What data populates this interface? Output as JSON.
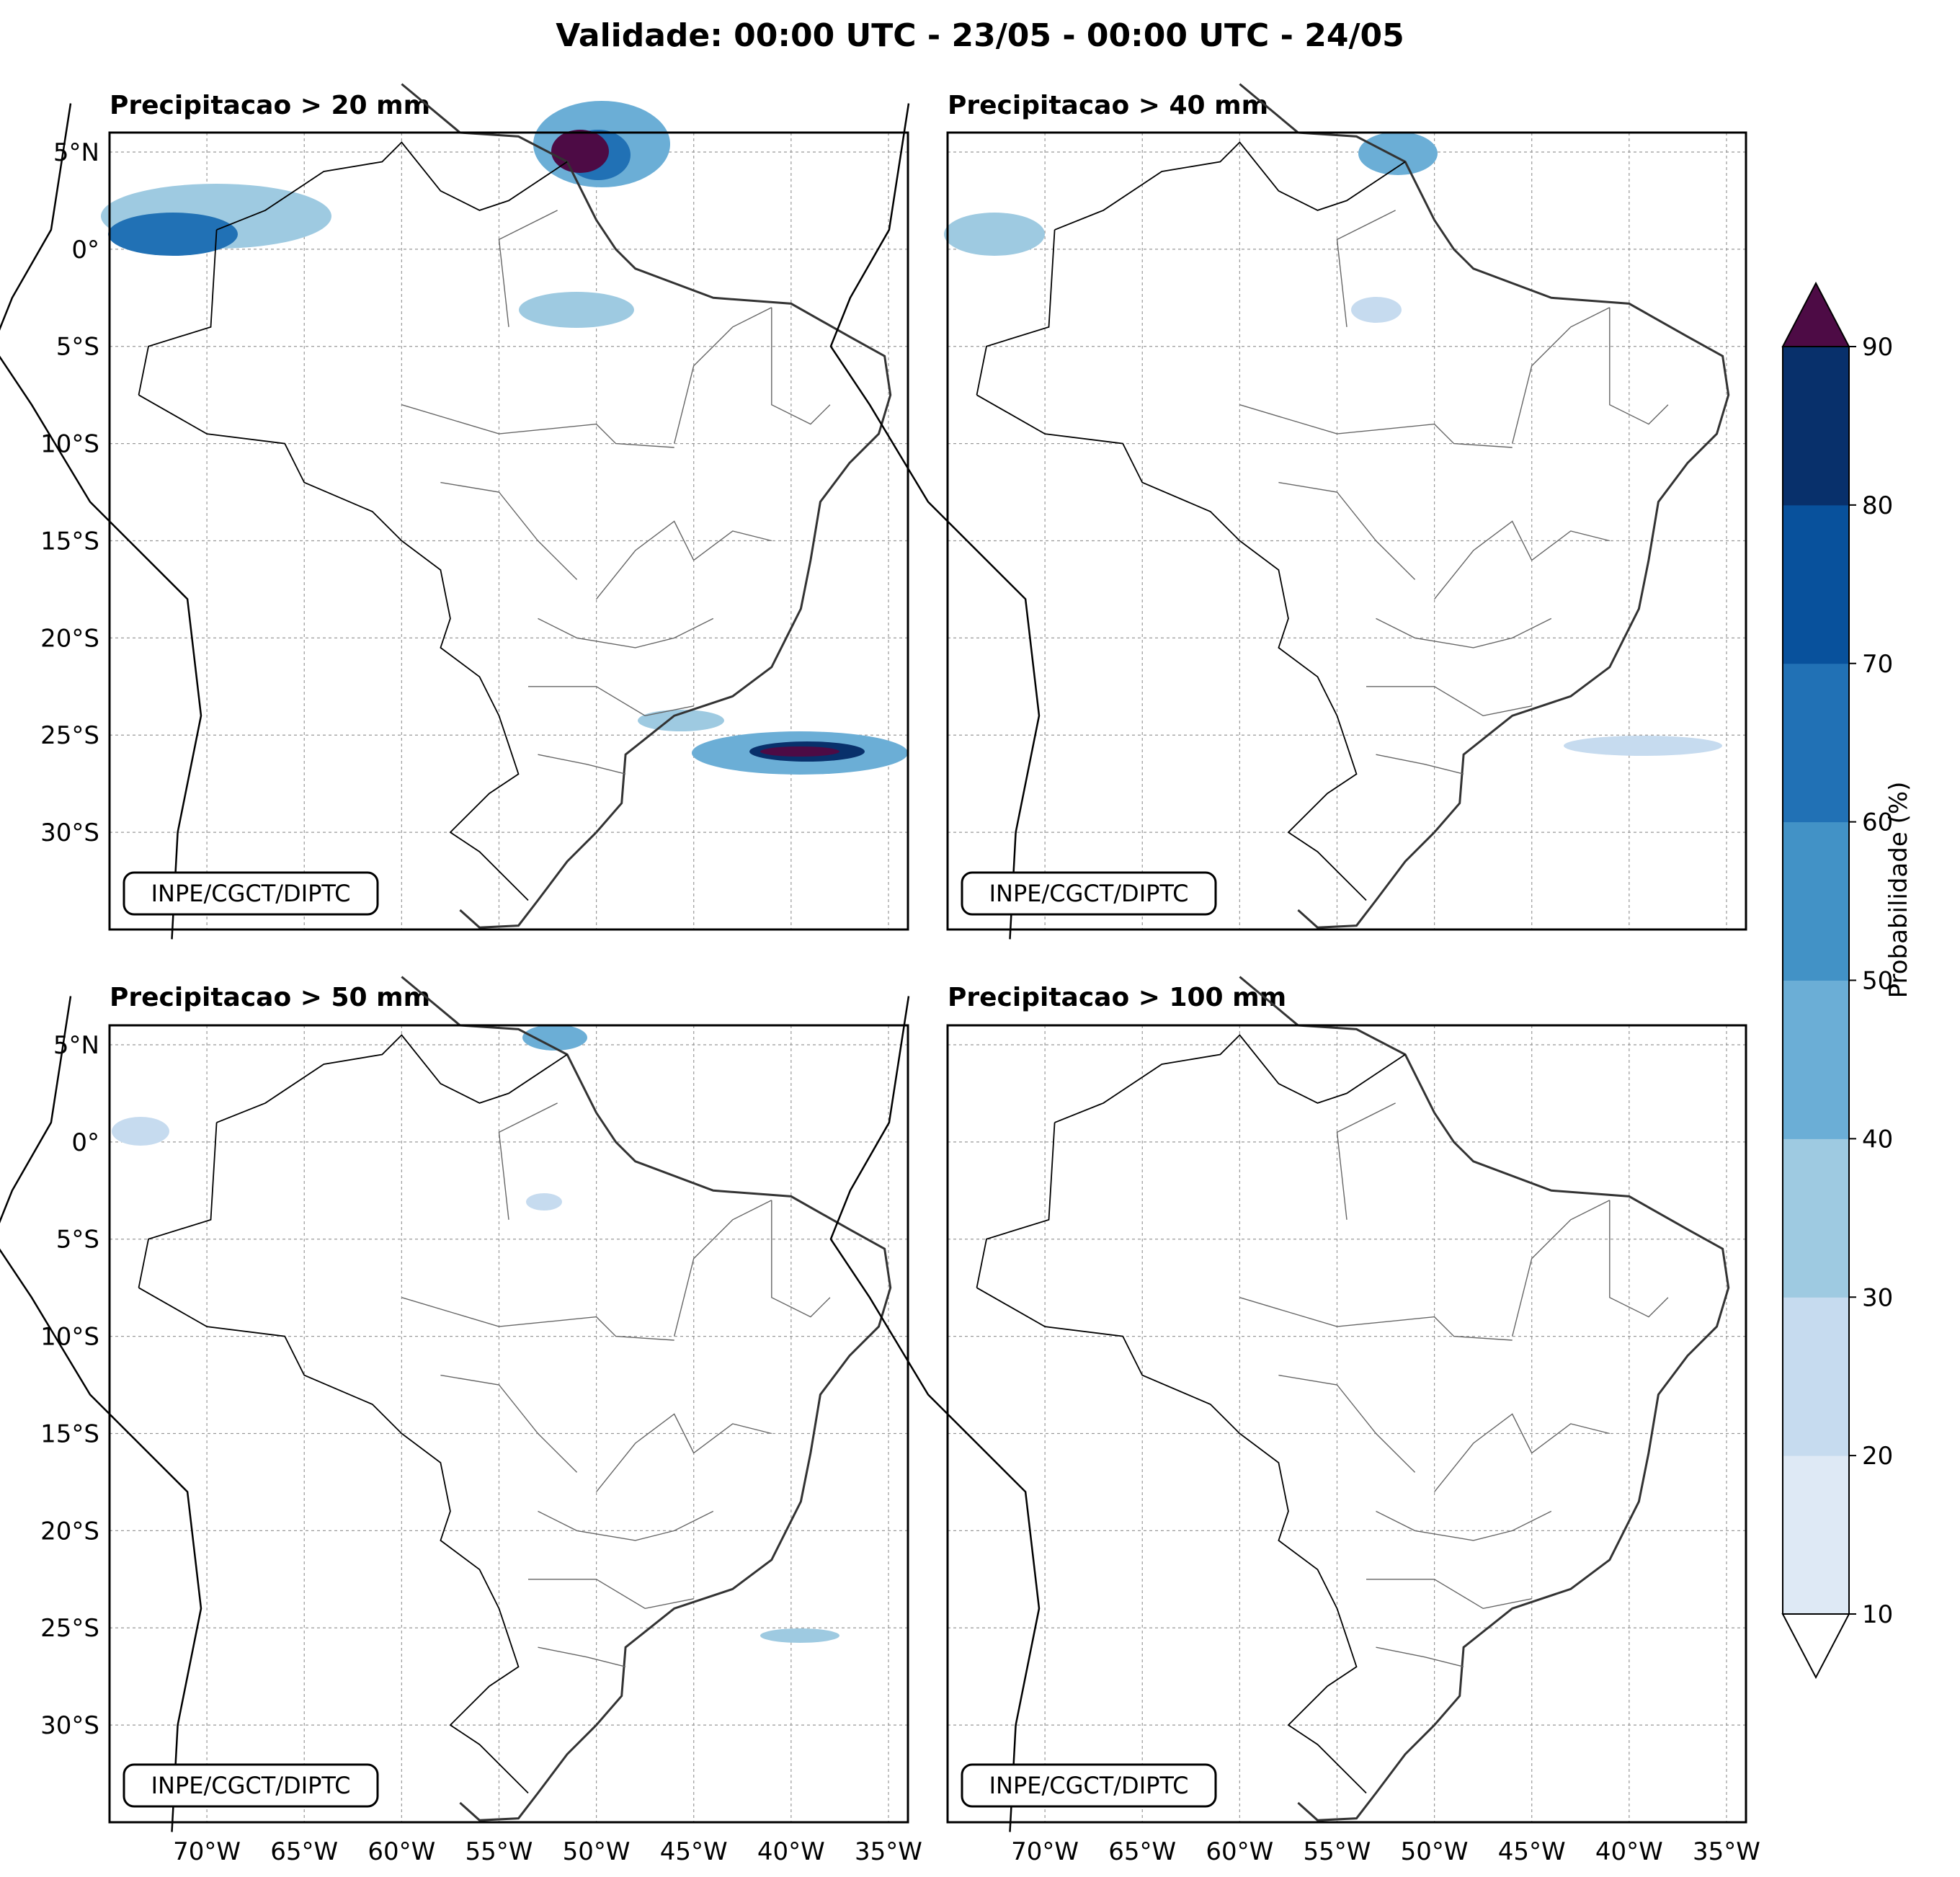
{
  "figure_title": "Validade: 00:00 UTC - 23/05 - 00:00 UTC - 24/05",
  "credit": "INPE/CGCT/DIPTC",
  "panels": [
    {
      "title": "Precipitacao > 20 mm"
    },
    {
      "title": "Precipitacao > 40 mm"
    },
    {
      "title": "Precipitacao > 50 mm"
    },
    {
      "title": "Precipitacao > 100 mm"
    }
  ],
  "map_extent": {
    "lon_min": -75,
    "lon_max": -34,
    "lat_min": -35,
    "lat_max": 6
  },
  "lat_ticks": [
    {
      "value": 5,
      "label": "5°N"
    },
    {
      "value": 0,
      "label": "0°"
    },
    {
      "value": -5,
      "label": "5°S"
    },
    {
      "value": -10,
      "label": "10°S"
    },
    {
      "value": -15,
      "label": "15°S"
    },
    {
      "value": -20,
      "label": "20°S"
    },
    {
      "value": -25,
      "label": "25°S"
    },
    {
      "value": -30,
      "label": "30°S"
    }
  ],
  "lon_ticks": [
    {
      "value": -70,
      "label": "70°W"
    },
    {
      "value": -65,
      "label": "65°W"
    },
    {
      "value": -60,
      "label": "60°W"
    },
    {
      "value": -55,
      "label": "55°W"
    },
    {
      "value": -50,
      "label": "50°W"
    },
    {
      "value": -45,
      "label": "45°W"
    },
    {
      "value": -40,
      "label": "40°W"
    },
    {
      "value": -35,
      "label": "35°W"
    }
  ],
  "colorbar": {
    "label": "Probabilidade (%)",
    "ticks": [
      "10",
      "20",
      "30",
      "40",
      "50",
      "60",
      "70",
      "80",
      "90"
    ],
    "colors": [
      "#dee9f5",
      "#c6dbef",
      "#9ecae1",
      "#6baed6",
      "#4292c6",
      "#2171b5",
      "#08519c",
      "#08306b"
    ],
    "extend_max_color": "#4d0b45",
    "extend_min_color": "#ffffff"
  }
}
